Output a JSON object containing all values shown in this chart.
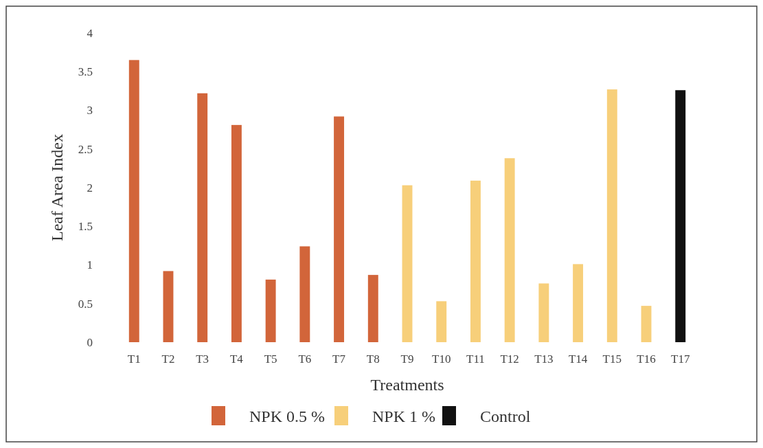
{
  "chart_data": {
    "type": "bar",
    "xlabel": "Treatments",
    "ylabel": "Leaf Area Index",
    "categories": [
      "T1",
      "T2",
      "T3",
      "T4",
      "T5",
      "T6",
      "T7",
      "T8",
      "T9",
      "T10",
      "T11",
      "T12",
      "T13",
      "T14",
      "T15",
      "T16",
      "T17"
    ],
    "series": [
      {
        "name": "NPK 0.5 %",
        "color": "#d2653a",
        "values": [
          3.65,
          0.92,
          3.22,
          2.81,
          0.81,
          1.24,
          2.92,
          0.87,
          null,
          null,
          null,
          null,
          null,
          null,
          null,
          null,
          null
        ]
      },
      {
        "name": "NPK 1 %",
        "color": "#f7cf7a",
        "values": [
          null,
          null,
          null,
          null,
          null,
          null,
          null,
          null,
          2.03,
          0.53,
          2.09,
          2.38,
          0.76,
          1.01,
          3.27,
          0.47,
          null
        ]
      },
      {
        "name": "Control",
        "color": "#111111",
        "values": [
          null,
          null,
          null,
          null,
          null,
          null,
          null,
          null,
          null,
          null,
          null,
          null,
          null,
          null,
          null,
          null,
          3.26
        ]
      }
    ],
    "ylim": [
      0,
      4
    ],
    "yticks": [
      0,
      0.5,
      1,
      1.5,
      2,
      2.5,
      3,
      3.5,
      4
    ],
    "grid": false,
    "legend": "bottom"
  }
}
